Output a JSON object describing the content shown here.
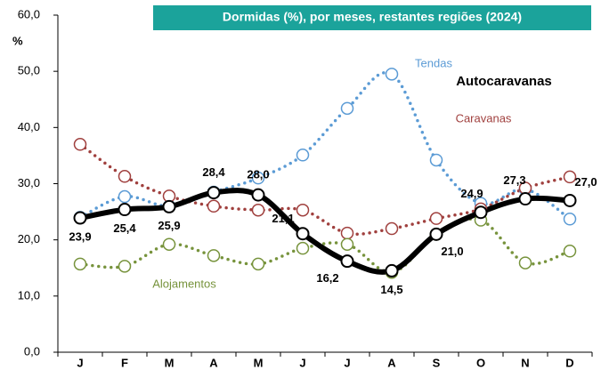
{
  "chart_data": {
    "type": "line",
    "title": "Dormidas (%), por meses, restantes regiões (2024)",
    "y_label": "%",
    "categories": [
      "J",
      "F",
      "M",
      "A",
      "M",
      "J",
      "J",
      "A",
      "S",
      "O",
      "N",
      "D"
    ],
    "series": [
      {
        "name": "Tendas",
        "color": "#5b9bd5",
        "values": [
          24.0,
          27.7,
          26.0,
          28.5,
          31.0,
          35.1,
          43.4,
          49.5,
          34.2,
          26.5,
          29.0,
          23.7
        ]
      },
      {
        "name": "Caravanas",
        "color": "#a0403e",
        "values": [
          37.0,
          31.3,
          27.8,
          26.0,
          25.3,
          25.3,
          21.2,
          22.0,
          23.8,
          25.5,
          29.2,
          31.2
        ]
      },
      {
        "name": "Alojamentos",
        "color": "#77933c",
        "values": [
          15.7,
          15.3,
          19.2,
          17.2,
          15.7,
          18.5,
          19.2,
          14.2,
          21.0,
          23.5,
          15.9,
          18.0
        ]
      },
      {
        "name": "Autocaravanas",
        "color": "#000000",
        "values": [
          23.9,
          25.4,
          25.9,
          28.4,
          28.0,
          21.1,
          16.2,
          14.5,
          21.0,
          24.9,
          27.3,
          27.0
        ],
        "value_labels": [
          "23,9",
          "25,4",
          "25,9",
          "28,4",
          "28,0",
          "21,1",
          "16,2",
          "14,5",
          "21,0",
          "24,9",
          "27,3",
          "27,0"
        ]
      }
    ],
    "ylim": [
      0,
      60
    ],
    "yticks": [
      {
        "value": 0,
        "label": "0,0"
      },
      {
        "value": 10,
        "label": "10,0"
      },
      {
        "value": 20,
        "label": "20,0"
      },
      {
        "value": 30,
        "label": "30,0"
      },
      {
        "value": 40,
        "label": "40,0"
      },
      {
        "value": 50,
        "label": "50,0"
      },
      {
        "value": 60,
        "label": "60,0"
      }
    ],
    "title_color": "#1ba39b"
  }
}
